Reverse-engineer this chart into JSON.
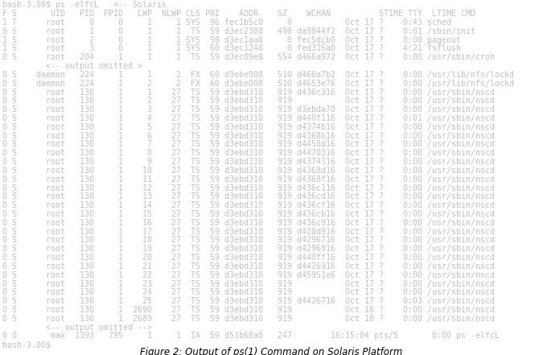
{
  "bg_color": "#000000",
  "fig_bg_color": "#ffffff",
  "text_color": "#c0c0c0",
  "font_family": "monospace",
  "font_size": 7.2,
  "title": "Figure 2: Output of ps(1) Command on Solaris Platform",
  "title_fontsize": 8.5,
  "fig_width": 6.75,
  "fig_height": 4.41,
  "dpi": 100,
  "lines": [
    "bash-3.00$ ps -elfcL   <-- Solaris",
    "F S       UID   PID  PPID   LWP  NLWP CLS PRI    ADDR    SZ    WCHAN          STIME TTY  LTIME CMD",
    "1 T      root     0     0     1     1 SYS  96 fec1b5c0     0           Oct 17 ?    0:43 sched",
    "0 S      root     1     0     1     1  TS  59 d3ec2308   498 da9844f2  Oct 17 ?    0:01 /sbin/init",
    "1 S      root     2     0     1     1 SYS  98 d3ec1aa8     0 fec5dcb0  Oct 17 ?    0:00 pageout",
    "1 S      root     3     0     1     1 SYS  60 d3ec1248     0 fed316a0  Oct 17 ?    4:21 fsflush",
    "0 S      root   204     1     1     1  TS  59 d3ec09e8   554 d466a972  Oct 17 ?    0:00 /usr/sbin/cron",
    "         <-- output omitted >",
    "0 S    daemon   224     1     1     2  FX  60 d3ebe008   510 d466a7b2  Oct 17 ?    0:00 /usr/lib/nfs/lockd",
    "0 S    daemon   224     1     2     2  FX  60 d3ebe008   510 d4653e76  Oct 17 ?    0:00 /usr/lib/nfs/lockd",
    "0 S      root   130     1     1    27  TS  59 d3ebd310   919 d436c316  Oct 17 ?    0:00 /usr/sbin/nscd",
    "0 S      root   130     1     2    27  TS  59 d3ebd310   919           Oct 17 ?    0:00 /usr/sbin/nscd",
    "0 S      root   130     1     3    27  TS  59 d3ebd310   919 d3ebda70  Oct 17 ?    0:00 /usr/sbin/nscd",
    "0 S      root   130     1     4    27  TS  59 d3ebd310   919 d440f116  Oct 17 ?    0:01 /usr/sbin/nscd",
    "0 S      root   130     1     5    27  TS  59 d3ebd310   919 d4374b16  Oct 17 ?    0:00 /usr/sbin/nscd",
    "0 S      root   130     1     6    27  TS  59 d3ebd310   919 d4368b16  Oct 17 ?    0:00 /usr/sbin/nscd",
    "0 S      root   130     1     7    27  TS  59 d3ebd310   919 d4458d16  Oct 17 ?    0:00 /usr/sbin/nscd",
    "0 S      root   130     1     8    27  TS  59 d3ebd310   919 d4470316  Oct 17 ?    0:00 /usr/sbin/nscd",
    "0 S      root   130     1     9    27  TS  59 d3ebd310   919 d4374316  Oct 17 ?    0:00 /usr/sbin/nscd",
    "0 S      root   130     1    10    27  TS  59 d3ebd310   919 d4368d16  Oct 17 ?    0:00 /usr/sbin/nscd",
    "0 S      root   130     1    11    27  TS  59 d3ebd310   919 d4368f16  Oct 17 ?    0:00 /usr/sbin/nscd",
    "0 S      root   130     1    12    27  TS  59 d3ebd310   919 d436c116  Oct 17 ?    0:00 /usr/sbin/nscd",
    "0 S      root   130     1    13    27  TS  59 d3ebd310   919 d436cd16  Oct 17 ?    0:00 /usr/sbin/nscd",
    "0 S      root   130     1    14    27  TS  59 d3ebd310   919 d436cf16  Oct 17 ?    0:00 /usr/sbin/nscd",
    "0 S      root   130     1    15    27  TS  59 d3ebd310   919 d436cb16  Oct 17 ?    0:00 /usr/sbin/nscd",
    "0 S      root   130     1    16    27  TS  59 d3ebd310   919 d436c916  Oct 17 ?    0:00 /usr/sbin/nscd",
    "0 S      root   130     1    17    27  TS  59 d3ebd310   919 d428d916  Oct 17 ?    0:00 /usr/sbin/nscd",
    "0 S      root   130     1    18    27  TS  59 d3ebd310   919 d4296716  Oct 17 ?    0:00 /usr/sbin/nscd",
    "0 S      root   130     1    19    27  TS  59 d3ebd310   919 d4296916  Oct 17 ?    0:00 /usr/sbin/nscd",
    "0 S      root   130     1    20    27  TS  59 d3ebd310   919 d440ff16  Oct 17 ?    0:00 /usr/sbin/nscd",
    "0 S      root   130     1    21    27  TS  59 d3ebd310   919 d4426916  Oct 17 ?    0:00 /usr/sbin/nscd",
    "0 S      root   130     1    22    27  TS  59 d3ebd310   919 d45951e6  Oct 17 ?    0:00 /usr/sbin/nscd",
    "0 S      root   130     1    23    27  TS  59 d3ebd310   919           Oct 17 ?    0:00 /usr/sbin/nscd",
    "0 S      root   130     1    24    27  TS  59 d3ebd310   919           Oct 17 ?    0:00 /usr/sbin/nscd",
    "0 S      root   130     1    25    27  TS  59 d3ebd310   919 d4426716  Oct 17 ?    0:03 /usr/sbin/nscd",
    "0 S      root   130     1  2690    27  TS  59 d3ebd310   919           Oct 18 ?    0:00 /usr/sbin/nscd",
    "0 S      root   130     1  2689    27  TS  59 d3ebd310   919           Oct 18 ?    0:00 /usr/sbin/nscd",
    "         <-- output omitted -->",
    "0 0       max  1393   795     1     1  IA  59 d51b68a0   247        16:15:04 pts/5       0:00 ps -elfcL",
    "bash-3.00$"
  ]
}
